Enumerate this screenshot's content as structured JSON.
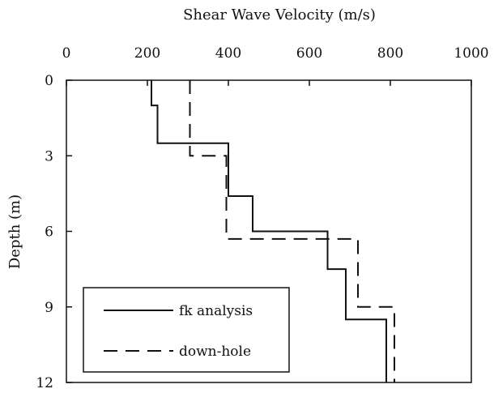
{
  "chart_data": {
    "type": "line",
    "xlabel": "Shear Wave Velocity (m/s)",
    "ylabel": "Depth (m)",
    "xlim": [
      0,
      1000
    ],
    "ylim": [
      0,
      12
    ],
    "x_axis_position": "top",
    "y_axis_inverted": true,
    "x_ticks": [
      0,
      200,
      400,
      600,
      800,
      1000
    ],
    "y_ticks": [
      0,
      3,
      6,
      9,
      12
    ],
    "x_tick_labels": [
      "0",
      "200",
      "400",
      "600",
      "800",
      "1000"
    ],
    "y_tick_labels": [
      "0",
      "3",
      "6",
      "9",
      "12"
    ],
    "grid": false,
    "legend": {
      "position": "bottom-left",
      "entries": [
        "fk analysis",
        "down-hole"
      ]
    },
    "series": [
      {
        "name": "fk analysis",
        "line_style": "solid",
        "color": "#111111",
        "points": [
          {
            "velocity": 210,
            "depth": 0
          },
          {
            "velocity": 210,
            "depth": 1.0
          },
          {
            "velocity": 225,
            "depth": 1.0
          },
          {
            "velocity": 225,
            "depth": 2.5
          },
          {
            "velocity": 400,
            "depth": 2.5
          },
          {
            "velocity": 400,
            "depth": 4.6
          },
          {
            "velocity": 460,
            "depth": 4.6
          },
          {
            "velocity": 460,
            "depth": 6.0
          },
          {
            "velocity": 645,
            "depth": 6.0
          },
          {
            "velocity": 645,
            "depth": 7.5
          },
          {
            "velocity": 690,
            "depth": 7.5
          },
          {
            "velocity": 690,
            "depth": 9.5
          },
          {
            "velocity": 790,
            "depth": 9.5
          },
          {
            "velocity": 790,
            "depth": 12
          }
        ]
      },
      {
        "name": "down-hole",
        "line_style": "dashed",
        "color": "#111111",
        "points": [
          {
            "velocity": 305,
            "depth": 0
          },
          {
            "velocity": 305,
            "depth": 3.0
          },
          {
            "velocity": 395,
            "depth": 3.0
          },
          {
            "velocity": 395,
            "depth": 6.3
          },
          {
            "velocity": 720,
            "depth": 6.3
          },
          {
            "velocity": 720,
            "depth": 9.0
          },
          {
            "velocity": 810,
            "depth": 9.0
          },
          {
            "velocity": 810,
            "depth": 12
          }
        ]
      }
    ]
  }
}
